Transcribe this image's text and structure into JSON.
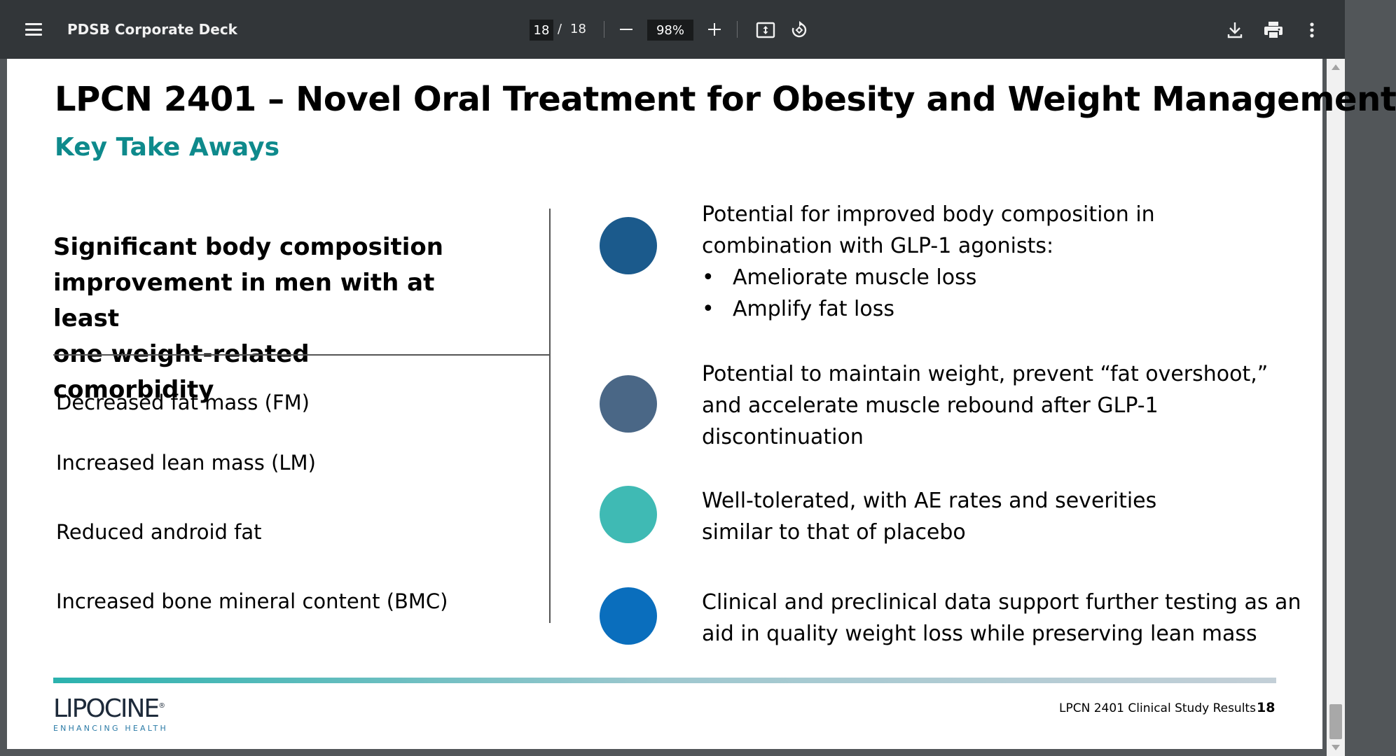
{
  "toolbar": {
    "title": "PDSB Corporate Deck",
    "current_page": "18",
    "page_separator": "/",
    "total_pages": "18",
    "zoom": "98%",
    "icons": [
      "menu-icon",
      "zoom-out-icon",
      "zoom-in-icon",
      "fit-page-icon",
      "rotate-icon",
      "download-icon",
      "print-icon",
      "more-icon"
    ]
  },
  "slide": {
    "title": "LPCN 2401 – Novel Oral Treatment for Obesity and Weight Management",
    "subtitle": "Key Take Aways",
    "left": {
      "heading_lines": [
        "Significant body composition",
        "improvement in men with at least",
        "one weight-related comorbidity"
      ],
      "items": [
        "Decreased fat mass (FM)",
        "Increased lean mass (LM)",
        "Reduced android fat",
        "Increased bone mineral content (BMC)"
      ]
    },
    "points": [
      {
        "color": "#1b5a8c",
        "lines": [
          "Potential for improved body composition in",
          "combination with GLP-1 agonists:"
        ],
        "bullets": [
          "Ameliorate muscle loss",
          "Amplify fat loss"
        ]
      },
      {
        "color": "#4a6786",
        "lines": [
          "Potential to maintain weight, prevent “fat overshoot,”",
          "and accelerate muscle rebound after GLP-1",
          "discontinuation"
        ]
      },
      {
        "color": "#3fbab4",
        "lines": [
          "Well-tolerated, with AE rates and severities",
          "similar to that of placebo"
        ]
      },
      {
        "color": "#0a6ebd",
        "lines": [
          "Clinical and preclinical data support further testing as an",
          "aid in quality weight loss while preserving lean mass"
        ]
      }
    ],
    "bullet_char": "•",
    "footer": {
      "logo_text": "LIPOCINE",
      "logo_mark": "®",
      "logo_tagline": "ENHANCING HEALTH",
      "caption": "LPCN 2401 Clinical Study Results",
      "page_number": "18"
    }
  },
  "colors": {
    "toolbar_bg": "#323639",
    "accent_teal": "#0e8a8c"
  }
}
